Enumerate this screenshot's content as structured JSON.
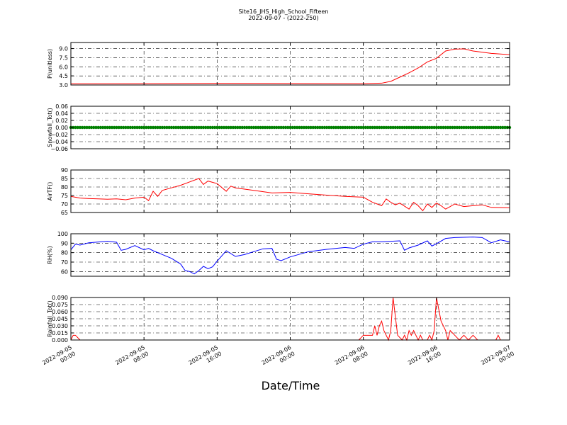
{
  "title": {
    "line1": "Site16_JHS_High_School_Fifteen",
    "line2": "2022-09-07 - (2022-250)"
  },
  "xlabel": "Date/Time",
  "x_ticks": [
    {
      "x": "2022-09-05 00:00",
      "label1": "2022-09-05",
      "label2": "00:00"
    },
    {
      "x": "2022-09-05 08:00",
      "label1": "2022-09-05",
      "label2": "08:00"
    },
    {
      "x": "2022-09-05 16:00",
      "label1": "2022-09-05",
      "label2": "16:00"
    },
    {
      "x": "2022-09-06 00:00",
      "label1": "2022-09-06",
      "label2": "00:00"
    },
    {
      "x": "2022-09-06 08:00",
      "label1": "2022-09-06",
      "label2": "08:00"
    },
    {
      "x": "2022-09-06 16:00",
      "label1": "2022-09-06",
      "label2": "16:00"
    },
    {
      "x": "2022-09-07 00:00",
      "label1": "2022-09-07",
      "label2": "00:00"
    }
  ],
  "xlim": [
    "2022-09-05 00:00",
    "2022-09-07 00:00"
  ],
  "colors": {
    "red": "#ff0000",
    "green": "#008000",
    "blue": "#0000ff",
    "grid": "#000000"
  },
  "chart_data": [
    {
      "type": "line",
      "ylabel": "P(unitless)",
      "ylim": [
        3.0,
        10.0
      ],
      "yticks": [
        "3.0",
        "4.5",
        "6.0",
        "7.5",
        "9.0"
      ],
      "grid": true,
      "series": [
        {
          "color": "#ff0000",
          "marker": "none",
          "points": [
            [
              "2022-09-05 00:00",
              3.2
            ],
            [
              "2022-09-05 08:00",
              3.22
            ],
            [
              "2022-09-05 16:00",
              3.28
            ],
            [
              "2022-09-06 00:00",
              3.25
            ],
            [
              "2022-09-06 08:00",
              3.22
            ],
            [
              "2022-09-06 10:00",
              3.3
            ],
            [
              "2022-09-06 11:00",
              3.6
            ],
            [
              "2022-09-06 12:00",
              4.3
            ],
            [
              "2022-09-06 13:00",
              5.0
            ],
            [
              "2022-09-06 14:00",
              5.8
            ],
            [
              "2022-09-06 15:00",
              6.8
            ],
            [
              "2022-09-06 16:00",
              7.4
            ],
            [
              "2022-09-06 17:00",
              8.6
            ],
            [
              "2022-09-06 18:00",
              8.9
            ],
            [
              "2022-09-06 19:00",
              8.95
            ],
            [
              "2022-09-06 20:00",
              8.6
            ],
            [
              "2022-09-06 22:00",
              8.2
            ],
            [
              "2022-09-07 00:00",
              8.0
            ]
          ]
        }
      ]
    },
    {
      "type": "scatter",
      "ylabel": "Snowfall_Tot()",
      "ylim": [
        -0.06,
        0.06
      ],
      "yticks": [
        "−0.06",
        "−0.04",
        "−0.02",
        "0.00",
        "0.02",
        "0.04",
        "0.06"
      ],
      "grid": true,
      "series": [
        {
          "color": "#008000",
          "marker": "dot",
          "interval_minutes": 15,
          "start": "2022-09-05 00:00",
          "end": "2022-09-07 00:00",
          "value": 0.0
        }
      ]
    },
    {
      "type": "line",
      "ylabel": "AirTF()",
      "ylim": [
        65,
        90
      ],
      "yticks": [
        "65",
        "70",
        "75",
        "80",
        "85",
        "90"
      ],
      "grid": true,
      "series": [
        {
          "color": "#ff0000",
          "marker": "none",
          "points": [
            [
              "2022-09-05 00:00",
              74.5
            ],
            [
              "2022-09-05 01:00",
              73.5
            ],
            [
              "2022-09-05 02:00",
              73.2
            ],
            [
              "2022-09-05 03:00",
              73.0
            ],
            [
              "2022-09-05 04:00",
              72.8
            ],
            [
              "2022-09-05 05:00",
              73.0
            ],
            [
              "2022-09-05 06:00",
              72.5
            ],
            [
              "2022-09-05 07:00",
              73.5
            ],
            [
              "2022-09-05 08:00",
              74.0
            ],
            [
              "2022-09-05 08:30",
              72.0
            ],
            [
              "2022-09-05 09:00",
              77.5
            ],
            [
              "2022-09-05 09:30",
              74.5
            ],
            [
              "2022-09-05 10:00",
              78.0
            ],
            [
              "2022-09-05 11:00",
              79.5
            ],
            [
              "2022-09-05 12:00",
              81.0
            ],
            [
              "2022-09-05 13:00",
              83.0
            ],
            [
              "2022-09-05 14:00",
              85.0
            ],
            [
              "2022-09-05 14:30",
              81.5
            ],
            [
              "2022-09-05 15:00",
              83.5
            ],
            [
              "2022-09-05 16:00",
              82.0
            ],
            [
              "2022-09-05 17:00",
              77.5
            ],
            [
              "2022-09-05 17:30",
              80.5
            ],
            [
              "2022-09-05 18:00",
              79.5
            ],
            [
              "2022-09-05 20:00",
              78.0
            ],
            [
              "2022-09-05 22:00",
              76.5
            ],
            [
              "2022-09-06 00:00",
              76.8
            ],
            [
              "2022-09-06 02:00",
              76.0
            ],
            [
              "2022-09-06 04:00",
              75.2
            ],
            [
              "2022-09-06 06:00",
              74.5
            ],
            [
              "2022-09-06 08:00",
              74.0
            ],
            [
              "2022-09-06 09:00",
              71.0
            ],
            [
              "2022-09-06 10:00",
              69.0
            ],
            [
              "2022-09-06 10:30",
              73.0
            ],
            [
              "2022-09-06 11:00",
              71.0
            ],
            [
              "2022-09-06 11:30",
              69.5
            ],
            [
              "2022-09-06 12:00",
              70.5
            ],
            [
              "2022-09-06 13:00",
              67.0
            ],
            [
              "2022-09-06 13:30",
              71.0
            ],
            [
              "2022-09-06 14:00",
              69.0
            ],
            [
              "2022-09-06 14:30",
              66.0
            ],
            [
              "2022-09-06 15:00",
              70.0
            ],
            [
              "2022-09-06 15:30",
              68.0
            ],
            [
              "2022-09-06 16:00",
              70.5
            ],
            [
              "2022-09-06 16:30",
              69.0
            ],
            [
              "2022-09-06 17:00",
              67.0
            ],
            [
              "2022-09-06 18:00",
              70.0
            ],
            [
              "2022-09-06 19:00",
              68.5
            ],
            [
              "2022-09-06 20:00",
              69.0
            ],
            [
              "2022-09-06 21:00",
              69.5
            ],
            [
              "2022-09-06 22:00",
              68.0
            ],
            [
              "2022-09-07 00:00",
              67.8
            ]
          ]
        }
      ]
    },
    {
      "type": "line",
      "ylabel": "RH(%)",
      "ylim": [
        55,
        100
      ],
      "yticks": [
        "60",
        "70",
        "80",
        "90",
        "100"
      ],
      "grid": true,
      "series": [
        {
          "color": "#0000ff",
          "marker": "none",
          "points": [
            [
              "2022-09-05 00:00",
              83.0
            ],
            [
              "2022-09-05 00:30",
              89.0
            ],
            [
              "2022-09-05 01:00",
              88.0
            ],
            [
              "2022-09-05 02:00",
              90.5
            ],
            [
              "2022-09-05 04:00",
              92.0
            ],
            [
              "2022-09-05 05:00",
              91.0
            ],
            [
              "2022-09-05 05:30",
              82.5
            ],
            [
              "2022-09-05 06:00",
              83.5
            ],
            [
              "2022-09-05 07:00",
              87.5
            ],
            [
              "2022-09-05 08:00",
              83.0
            ],
            [
              "2022-09-05 08:30",
              84.5
            ],
            [
              "2022-09-05 09:00",
              82.0
            ],
            [
              "2022-09-05 10:00",
              78.0
            ],
            [
              "2022-09-05 11:00",
              74.0
            ],
            [
              "2022-09-05 12:00",
              68.0
            ],
            [
              "2022-09-05 12:30",
              61.0
            ],
            [
              "2022-09-05 13:00",
              60.0
            ],
            [
              "2022-09-05 13:30",
              57.5
            ],
            [
              "2022-09-05 14:00",
              61.0
            ],
            [
              "2022-09-05 14:30",
              65.5
            ],
            [
              "2022-09-05 15:00",
              63.0
            ],
            [
              "2022-09-05 15:30",
              65.0
            ],
            [
              "2022-09-05 16:00",
              71.0
            ],
            [
              "2022-09-05 17:00",
              82.0
            ],
            [
              "2022-09-05 18:00",
              76.0
            ],
            [
              "2022-09-05 19:00",
              78.0
            ],
            [
              "2022-09-05 20:00",
              81.0
            ],
            [
              "2022-09-05 21:00",
              84.0
            ],
            [
              "2022-09-05 22:00",
              84.5
            ],
            [
              "2022-09-05 22:30",
              73.0
            ],
            [
              "2022-09-05 23:00",
              71.5
            ],
            [
              "2022-09-06 00:00",
              75.5
            ],
            [
              "2022-09-06 02:00",
              81.0
            ],
            [
              "2022-09-06 04:00",
              83.5
            ],
            [
              "2022-09-06 06:00",
              85.5
            ],
            [
              "2022-09-06 07:00",
              84.5
            ],
            [
              "2022-09-06 08:00",
              89.0
            ],
            [
              "2022-09-06 09:00",
              91.5
            ],
            [
              "2022-09-06 10:00",
              91.5
            ],
            [
              "2022-09-06 11:00",
              92.0
            ],
            [
              "2022-09-06 12:00",
              92.5
            ],
            [
              "2022-09-06 12:30",
              82.5
            ],
            [
              "2022-09-06 13:00",
              85.0
            ],
            [
              "2022-09-06 14:00",
              88.0
            ],
            [
              "2022-09-06 15:00",
              92.5
            ],
            [
              "2022-09-06 15:30",
              87.0
            ],
            [
              "2022-09-06 16:00",
              89.5
            ],
            [
              "2022-09-06 17:00",
              95.0
            ],
            [
              "2022-09-06 18:00",
              96.0
            ],
            [
              "2022-09-06 20:00",
              96.5
            ],
            [
              "2022-09-06 21:00",
              96.0
            ],
            [
              "2022-09-06 22:00",
              90.5
            ],
            [
              "2022-09-06 23:00",
              93.5
            ],
            [
              "2022-09-07 00:00",
              91.5
            ]
          ]
        }
      ]
    },
    {
      "type": "line",
      "ylabel": "Rainfall_Tot()",
      "ylim": [
        0.0,
        0.09
      ],
      "yticks": [
        "0.000",
        "0.015",
        "0.030",
        "0.045",
        "0.060",
        "0.075",
        "0.090"
      ],
      "grid": true,
      "series": [
        {
          "color": "#ff0000",
          "marker": "none",
          "points": [
            [
              "2022-09-05 00:00",
              0.0
            ],
            [
              "2022-09-05 00:15",
              0.01
            ],
            [
              "2022-09-05 00:30",
              0.01
            ],
            [
              "2022-09-05 01:00",
              0.0
            ],
            [
              "2022-09-06 07:30",
              0.0
            ],
            [
              "2022-09-06 08:00",
              0.01
            ],
            [
              "2022-09-06 09:00",
              0.01
            ],
            [
              "2022-09-06 09:15",
              0.03
            ],
            [
              "2022-09-06 09:30",
              0.01
            ],
            [
              "2022-09-06 09:45",
              0.03
            ],
            [
              "2022-09-06 10:00",
              0.04
            ],
            [
              "2022-09-06 10:15",
              0.02
            ],
            [
              "2022-09-06 10:45",
              0.0
            ],
            [
              "2022-09-06 11:00",
              0.02
            ],
            [
              "2022-09-06 11:15",
              0.09
            ],
            [
              "2022-09-06 11:45",
              0.01
            ],
            [
              "2022-09-06 12:15",
              0.0
            ],
            [
              "2022-09-06 12:30",
              0.01
            ],
            [
              "2022-09-06 12:45",
              0.0
            ],
            [
              "2022-09-06 13:00",
              0.02
            ],
            [
              "2022-09-06 13:15",
              0.01
            ],
            [
              "2022-09-06 13:30",
              0.02
            ],
            [
              "2022-09-06 13:45",
              0.01
            ],
            [
              "2022-09-06 14:00",
              0.0
            ],
            [
              "2022-09-06 14:15",
              0.01
            ],
            [
              "2022-09-06 14:30",
              0.0
            ],
            [
              "2022-09-06 15:00",
              0.0
            ],
            [
              "2022-09-06 15:15",
              0.01
            ],
            [
              "2022-09-06 15:30",
              0.0
            ],
            [
              "2022-09-06 15:45",
              0.02
            ],
            [
              "2022-09-06 16:00",
              0.09
            ],
            [
              "2022-09-06 16:30",
              0.04
            ],
            [
              "2022-09-06 17:00",
              0.02
            ],
            [
              "2022-09-06 17:15",
              0.0
            ],
            [
              "2022-09-06 17:30",
              0.02
            ],
            [
              "2022-09-06 18:00",
              0.01
            ],
            [
              "2022-09-06 18:30",
              0.0
            ],
            [
              "2022-09-06 19:00",
              0.01
            ],
            [
              "2022-09-06 19:30",
              0.0
            ],
            [
              "2022-09-06 20:00",
              0.01
            ],
            [
              "2022-09-06 20:30",
              0.0
            ],
            [
              "2022-09-06 22:30",
              0.0
            ],
            [
              "2022-09-06 22:45",
              0.01
            ],
            [
              "2022-09-06 23:00",
              0.0
            ],
            [
              "2022-09-07 00:00",
              0.0
            ]
          ]
        }
      ]
    }
  ]
}
